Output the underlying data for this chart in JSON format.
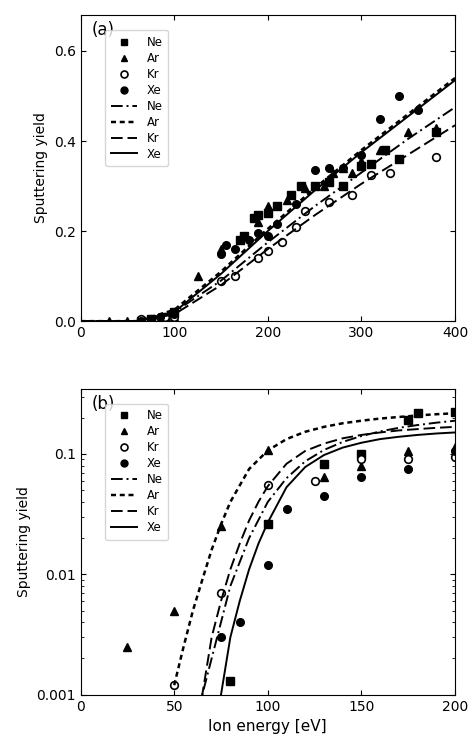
{
  "panel_a": {
    "title": "(a)",
    "ylabel": "Sputtering yield",
    "xlim": [
      0,
      400
    ],
    "ylim": [
      0.0,
      0.68
    ],
    "yticks": [
      0.0,
      0.2,
      0.4,
      0.6
    ],
    "xticks": [
      0,
      100,
      200,
      300,
      400
    ],
    "data_Ne": [
      [
        65,
        0.0
      ],
      [
        75,
        0.005
      ],
      [
        90,
        0.01
      ],
      [
        100,
        0.02
      ],
      [
        170,
        0.18
      ],
      [
        175,
        0.19
      ],
      [
        185,
        0.23
      ],
      [
        190,
        0.235
      ],
      [
        200,
        0.24
      ],
      [
        210,
        0.255
      ],
      [
        225,
        0.28
      ],
      [
        235,
        0.3
      ],
      [
        250,
        0.3
      ],
      [
        265,
        0.31
      ],
      [
        280,
        0.3
      ],
      [
        300,
        0.345
      ],
      [
        310,
        0.35
      ],
      [
        325,
        0.38
      ],
      [
        340,
        0.36
      ],
      [
        380,
        0.42
      ]
    ],
    "data_Ar": [
      [
        30,
        0.0
      ],
      [
        50,
        0.0
      ],
      [
        65,
        0.0
      ],
      [
        75,
        0.005
      ],
      [
        100,
        0.01
      ],
      [
        125,
        0.1
      ],
      [
        150,
        0.16
      ],
      [
        175,
        0.19
      ],
      [
        190,
        0.22
      ],
      [
        200,
        0.255
      ],
      [
        220,
        0.27
      ],
      [
        240,
        0.295
      ],
      [
        260,
        0.3
      ],
      [
        270,
        0.33
      ],
      [
        280,
        0.34
      ],
      [
        290,
        0.33
      ],
      [
        300,
        0.355
      ],
      [
        320,
        0.38
      ],
      [
        350,
        0.42
      ],
      [
        380,
        0.43
      ]
    ],
    "data_Kr": [
      [
        65,
        0.005
      ],
      [
        75,
        0.005
      ],
      [
        90,
        0.01
      ],
      [
        100,
        0.01
      ],
      [
        150,
        0.09
      ],
      [
        165,
        0.1
      ],
      [
        190,
        0.14
      ],
      [
        200,
        0.155
      ],
      [
        215,
        0.175
      ],
      [
        230,
        0.21
      ],
      [
        240,
        0.245
      ],
      [
        265,
        0.265
      ],
      [
        290,
        0.28
      ],
      [
        310,
        0.325
      ],
      [
        330,
        0.33
      ],
      [
        380,
        0.365
      ]
    ],
    "data_Xe": [
      [
        65,
        0.0
      ],
      [
        75,
        0.0
      ],
      [
        85,
        0.01
      ],
      [
        100,
        0.015
      ],
      [
        150,
        0.15
      ],
      [
        155,
        0.17
      ],
      [
        165,
        0.16
      ],
      [
        180,
        0.18
      ],
      [
        190,
        0.195
      ],
      [
        200,
        0.19
      ],
      [
        210,
        0.215
      ],
      [
        230,
        0.26
      ],
      [
        250,
        0.335
      ],
      [
        265,
        0.34
      ],
      [
        280,
        0.34
      ],
      [
        300,
        0.37
      ],
      [
        320,
        0.45
      ],
      [
        340,
        0.5
      ],
      [
        360,
        0.47
      ]
    ],
    "curve_Ne_x": [
      0,
      60,
      100,
      150,
      200,
      250,
      300,
      350,
      400
    ],
    "curve_Ne_y": [
      0.0,
      0.0,
      0.02,
      0.09,
      0.175,
      0.255,
      0.33,
      0.405,
      0.475
    ],
    "curve_Ar_x": [
      0,
      60,
      100,
      150,
      200,
      250,
      300,
      350,
      400
    ],
    "curve_Ar_y": [
      0.0,
      0.0,
      0.025,
      0.11,
      0.205,
      0.295,
      0.38,
      0.46,
      0.54
    ],
    "curve_Kr_x": [
      0,
      60,
      100,
      150,
      200,
      250,
      300,
      350,
      400
    ],
    "curve_Kr_y": [
      0.0,
      0.0,
      0.015,
      0.08,
      0.16,
      0.235,
      0.305,
      0.37,
      0.435
    ],
    "curve_Xe_x": [
      0,
      60,
      100,
      150,
      200,
      250,
      300,
      350,
      400
    ],
    "curve_Xe_y": [
      0.0,
      0.0,
      0.02,
      0.105,
      0.2,
      0.29,
      0.375,
      0.455,
      0.535
    ]
  },
  "panel_b": {
    "title": "(b)",
    "xlabel": "Ion energy [eV]",
    "ylabel": "Sputtering yield",
    "xlim": [
      0,
      200
    ],
    "ylim": [
      0.001,
      0.35
    ],
    "yticks": [
      0.001,
      0.01,
      0.1
    ],
    "xticks": [
      0,
      50,
      100,
      150,
      200
    ],
    "data_Ne": [
      [
        80,
        0.0013
      ],
      [
        100,
        0.026
      ],
      [
        130,
        0.083
      ],
      [
        150,
        0.1
      ],
      [
        175,
        0.19
      ],
      [
        180,
        0.22
      ],
      [
        200,
        0.225
      ]
    ],
    "data_Ar": [
      [
        25,
        0.0025
      ],
      [
        50,
        0.005
      ],
      [
        75,
        0.025
      ],
      [
        100,
        0.108
      ],
      [
        130,
        0.065
      ],
      [
        150,
        0.08
      ],
      [
        175,
        0.105
      ],
      [
        200,
        0.115
      ]
    ],
    "data_Kr": [
      [
        50,
        0.0012
      ],
      [
        75,
        0.007
      ],
      [
        100,
        0.055
      ],
      [
        125,
        0.06
      ],
      [
        150,
        0.09
      ],
      [
        175,
        0.09
      ],
      [
        200,
        0.095
      ]
    ],
    "data_Xe": [
      [
        75,
        0.003
      ],
      [
        85,
        0.004
      ],
      [
        100,
        0.012
      ],
      [
        110,
        0.035
      ],
      [
        130,
        0.045
      ],
      [
        150,
        0.065
      ],
      [
        175,
        0.075
      ],
      [
        200,
        0.105
      ]
    ],
    "curve_Ar_x": [
      50,
      55,
      60,
      65,
      70,
      75,
      80,
      90,
      100,
      110,
      120,
      130,
      140,
      150,
      160,
      170,
      180,
      190,
      200
    ],
    "curve_Ar_y": [
      0.0012,
      0.0025,
      0.005,
      0.009,
      0.016,
      0.026,
      0.04,
      0.075,
      0.107,
      0.133,
      0.153,
      0.168,
      0.18,
      0.189,
      0.197,
      0.203,
      0.209,
      0.214,
      0.218
    ],
    "curve_Ne_x": [
      60,
      65,
      70,
      75,
      80,
      90,
      100,
      110,
      120,
      130,
      140,
      150,
      160,
      170,
      180,
      190,
      200
    ],
    "curve_Ne_y": [
      0.0005,
      0.001,
      0.002,
      0.004,
      0.008,
      0.02,
      0.04,
      0.063,
      0.087,
      0.108,
      0.126,
      0.141,
      0.154,
      0.165,
      0.174,
      0.182,
      0.189
    ],
    "curve_Kr_x": [
      62,
      65,
      70,
      75,
      80,
      85,
      90,
      95,
      100,
      110,
      120,
      130,
      140,
      150,
      160,
      170,
      180,
      190,
      200
    ],
    "curve_Kr_y": [
      0.0005,
      0.001,
      0.003,
      0.006,
      0.011,
      0.018,
      0.028,
      0.04,
      0.054,
      0.083,
      0.106,
      0.122,
      0.135,
      0.144,
      0.151,
      0.157,
      0.161,
      0.165,
      0.168
    ],
    "curve_Xe_x": [
      72,
      75,
      80,
      85,
      90,
      95,
      100,
      110,
      120,
      130,
      140,
      150,
      160,
      170,
      180,
      190,
      200
    ],
    "curve_Xe_y": [
      0.0005,
      0.001,
      0.003,
      0.006,
      0.011,
      0.018,
      0.027,
      0.053,
      0.078,
      0.098,
      0.113,
      0.124,
      0.133,
      0.139,
      0.144,
      0.148,
      0.151
    ]
  }
}
